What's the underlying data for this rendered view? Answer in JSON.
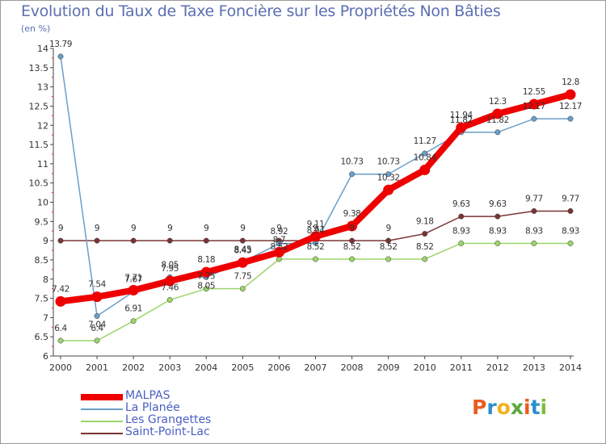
{
  "title": "Evolution du Taux de Taxe Foncière sur les Propriétés Non Bâties",
  "unit_label": "(en %)",
  "logo": {
    "letters": [
      "P",
      "r",
      "o",
      "x",
      "i",
      "t",
      "i"
    ],
    "colors": [
      "#e85d1f",
      "#2a8fd0",
      "#f2b01e",
      "#5aa83a",
      "#e85d1f",
      "#2a8fd0",
      "#7bbf3a"
    ]
  },
  "chart_data": {
    "type": "line",
    "title": "Evolution du Taux de Taxe Foncière sur les Propriétés Non Bâties",
    "ylabel": "(en %)",
    "xlabel": "",
    "x": [
      "2000",
      "2001",
      "2002",
      "2003",
      "2004",
      "2005",
      "2006",
      "2007",
      "2008",
      "2009",
      "2010",
      "2011",
      "2012",
      "2013",
      "2014"
    ],
    "ylim": [
      6,
      14
    ],
    "yticks": [
      "6",
      "6.5",
      "7",
      "7.5",
      "8",
      "8.5",
      "9",
      "9.5",
      "10",
      "10.5",
      "11",
      "11.5",
      "12",
      "12.5",
      "13",
      "13.5",
      "14"
    ],
    "legend_position": "bottom-left",
    "series": [
      {
        "name": "MALPAS",
        "color": "#ee0000",
        "values": [
          7.42,
          7.54,
          7.71,
          7.95,
          8.18,
          8.43,
          8.7,
          9.11,
          9.38,
          10.32,
          10.84,
          11.94,
          12.3,
          12.55,
          12.8
        ],
        "labels": [
          "7.42",
          "7.54",
          "7.71",
          "7.95",
          "8.18",
          "8.43",
          "8.7",
          "9.11",
          "9.38",
          "10.32",
          "10.84",
          "11.94",
          "12.3",
          "12.55",
          "12.8"
        ]
      },
      {
        "name": "La Planée",
        "color": "#6a9fc8",
        "values": [
          13.79,
          7.04,
          7.67,
          8.05,
          8.05,
          8.45,
          8.92,
          8.94,
          10.73,
          10.73,
          11.27,
          11.82,
          11.82,
          12.17,
          12.17
        ],
        "labels": [
          "13.79",
          "7.04",
          "7.67",
          "8.05",
          "8.05",
          "8.45",
          "8.92",
          "8.94",
          "10.73",
          "10.73",
          "11.27",
          "11.82",
          "11.82",
          "12.17",
          "12.17"
        ]
      },
      {
        "name": "Les Grangettes",
        "color": "#9bd56b",
        "values": [
          6.4,
          6.4,
          6.91,
          7.46,
          7.75,
          7.75,
          8.52,
          8.52,
          8.52,
          8.52,
          8.52,
          8.93,
          8.93,
          8.93,
          8.93
        ],
        "labels": [
          "6.4",
          "6.4",
          "6.91",
          "7.46",
          "7.75",
          "7.75",
          "8.52",
          "8.52",
          "8.52",
          "8.52",
          "8.52",
          "8.93",
          "8.93",
          "8.93",
          "8.93"
        ]
      },
      {
        "name": "Saint-Point-Lac",
        "color": "#7a3434",
        "values": [
          9,
          9,
          9,
          9,
          9,
          9,
          9,
          9,
          9,
          9,
          9.18,
          9.63,
          9.63,
          9.77,
          9.77
        ],
        "labels": [
          "9",
          "9",
          "9",
          "9",
          "9",
          "9",
          "9",
          "9",
          "9",
          "9",
          "9.18",
          "9.63",
          "9.63",
          "9.77",
          "9.77"
        ]
      }
    ]
  }
}
